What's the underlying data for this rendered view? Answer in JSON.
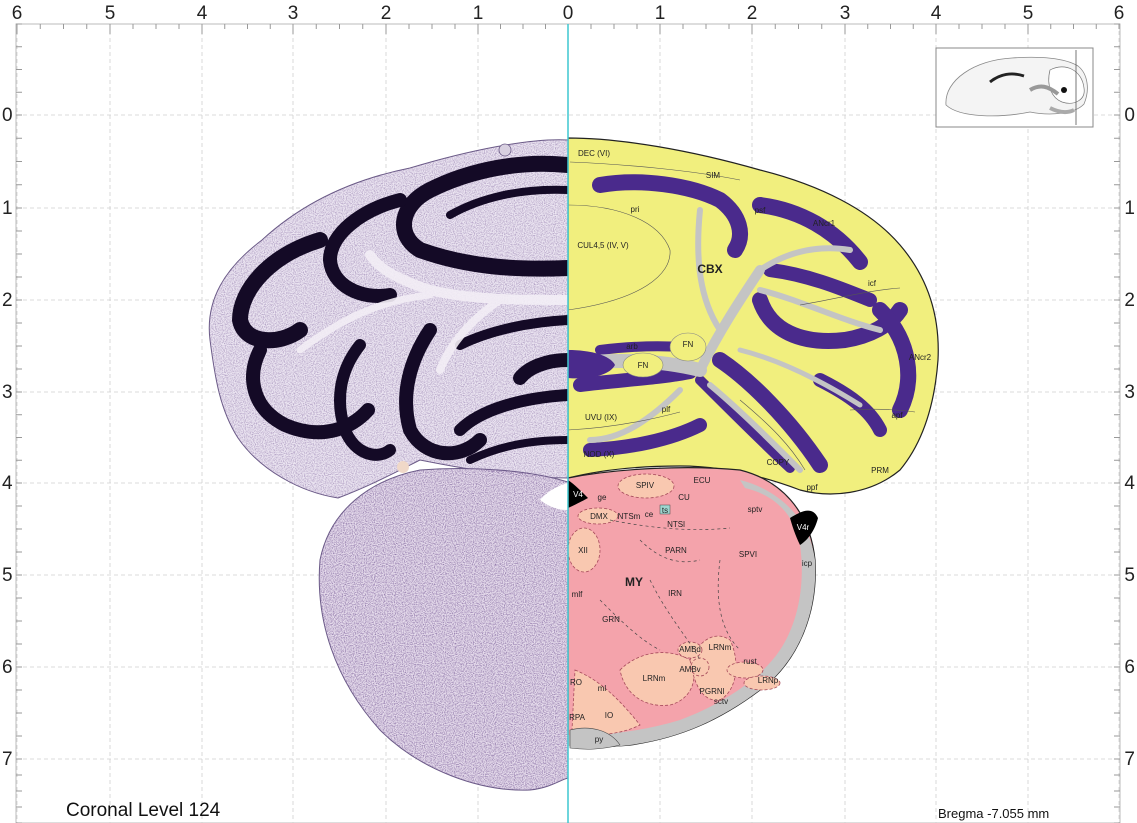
{
  "axis": {
    "top_ticks": [
      "6",
      "5",
      "4",
      "3",
      "2",
      "1",
      "0",
      "1",
      "2",
      "3",
      "4",
      "5",
      "6"
    ],
    "side_ticks": [
      "0",
      "1",
      "2",
      "3",
      "4",
      "5",
      "6",
      "7"
    ]
  },
  "captions": {
    "level": "Coronal Level 124",
    "bregma": "Bregma -7.055 mm"
  },
  "colors": {
    "cerebellum_cortex": "#f1ef7e",
    "granular_layer": "#4a2a8c",
    "white_matter": "#c4c4c4",
    "medulla": "#f4a3ab",
    "medulla_nuclei": "#f9c8b0",
    "ventricle": "#000000",
    "midline": "#3fc7d0",
    "grid": "#c8c8c8",
    "nissl": "#2c1a4a"
  },
  "regions": {
    "cbx": "CBX",
    "my": "MY",
    "dec": "DEC (VI)",
    "sim": "SIM",
    "pri": "pri",
    "cul": "CUL4,5 (IV, V)",
    "psf": "psf",
    "ancr1": "ANcr1",
    "icf": "icf",
    "ancr2": "ANcr2",
    "apf": "apf",
    "arb": "arb",
    "fn1": "FN",
    "fn2": "FN",
    "uvu": "UVU (IX)",
    "plf": "plf",
    "nod": "NOD (X)",
    "copy": "COPY",
    "ppf": "ppf",
    "prm": "PRM",
    "v4": "V4",
    "v4r": "V4r",
    "ge": "ge",
    "spiv": "SPIV",
    "ecu": "ECU",
    "cu": "CU",
    "dmx": "DMX",
    "ntsm": "NTSm",
    "ce": "ce",
    "ts": "ts",
    "ntsl": "NTSl",
    "sptv": "sptv",
    "icp": "icp",
    "xii": "XII",
    "parn": "PARN",
    "spvi": "SPVI",
    "mlf": "mlf",
    "irn": "IRN",
    "grn": "GRN",
    "amba": "AMBd",
    "ambv": "AMBv",
    "lrnm2": "LRNm",
    "rust": "rust",
    "ro": "RO",
    "ml": "ml",
    "lrnm": "LRNm",
    "pgrnl": "PGRNl",
    "lrnp": "LRNp",
    "rpa": "RPA",
    "io": "IO",
    "sctv": "sctv",
    "py": "py"
  }
}
